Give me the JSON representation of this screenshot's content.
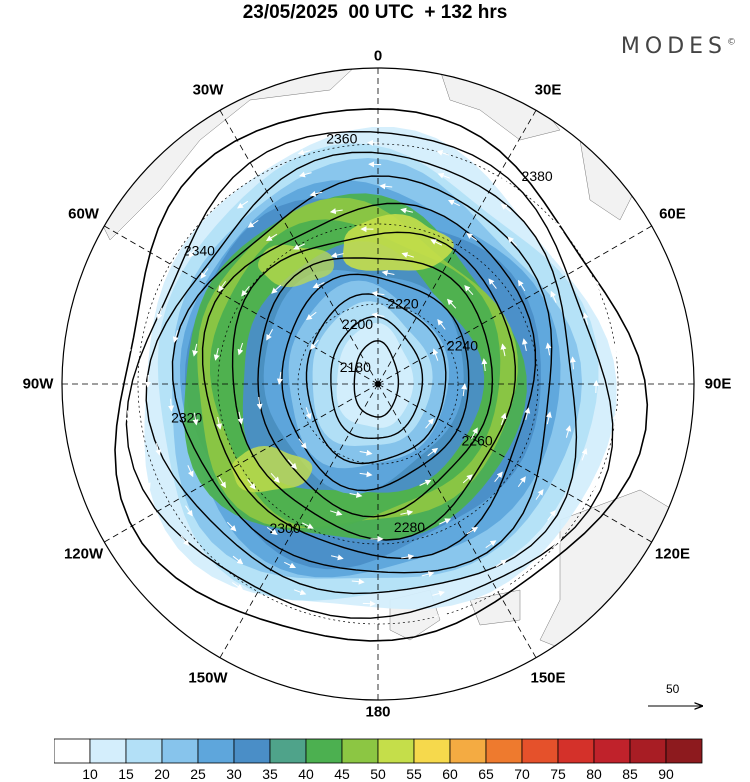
{
  "title": "23/05/2025  00 UTC  + 132 hrs",
  "brand": "MODES",
  "brand_mark": "©",
  "longitude_labels": [
    "0",
    "30E",
    "60E",
    "90E",
    "120E",
    "150E",
    "180",
    "150W",
    "120W",
    "90W",
    "60W",
    "30W"
  ],
  "contours": [
    {
      "value": "2180",
      "label": "2180"
    },
    {
      "value": "2200",
      "label": "2200"
    },
    {
      "value": "2220",
      "label": "2220"
    },
    {
      "value": "2240",
      "label": "2240"
    },
    {
      "value": "2260",
      "label": "2260"
    },
    {
      "value": "2280",
      "label": "2280"
    },
    {
      "value": "2300",
      "label": "2300"
    },
    {
      "value": "2320",
      "label": "2320"
    },
    {
      "value": "2340",
      "label": "2340"
    },
    {
      "value": "2360",
      "label": "2360"
    },
    {
      "value": "2380",
      "label": "2380"
    }
  ],
  "reference_vector": "50",
  "colorbar": {
    "labels": [
      "10",
      "15",
      "20",
      "25",
      "30",
      "35",
      "40",
      "45",
      "50",
      "55",
      "60",
      "65",
      "70",
      "75",
      "80",
      "85",
      "90"
    ],
    "colors": [
      "#ffffff",
      "#d4eefc",
      "#b3e0f7",
      "#87c4ec",
      "#5ea6dc",
      "#4a8ec7",
      "#4fa38a",
      "#4cb050",
      "#8cc643",
      "#c5de4a",
      "#f6d94c",
      "#f4ab42",
      "#ee7a2e",
      "#e5512b",
      "#d4312a",
      "#c0222b",
      "#a81d24",
      "#8d1a1e"
    ]
  }
}
